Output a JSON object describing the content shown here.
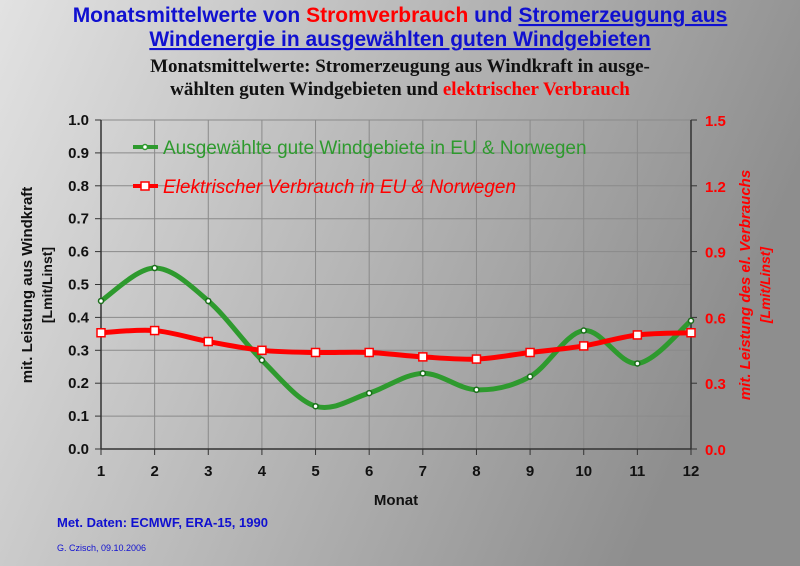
{
  "titles": {
    "overlay_line1_a": "Monatsmittelwerte von ",
    "overlay_line1_b": "Stromverbrauch",
    "overlay_line1_c": " und ",
    "overlay_line1_d": "Stromerzeugung aus",
    "overlay_line2": "Windenergie in ausgewählten guten Windgebieten",
    "main_line1": "Monatsmittelwerte: Stromerzeugung aus Windkraft in ausge-",
    "main_line2_a": "wählten guten Windgebieten und ",
    "main_line2_b": "elektrischer Verbrauch"
  },
  "footer": {
    "source": "Met. Daten: ECMWF, ERA-15, 1990",
    "author": "G. Czisch, 09.10.2006"
  },
  "colors": {
    "wind": "#2e9a2e",
    "consumption": "#ff0000",
    "title_blue": "#1010d0",
    "red": "#ff0000"
  },
  "chart_data": {
    "type": "line",
    "xlabel": "Monat",
    "ylabel": "mit. Leistung aus Windkraft",
    "ylabel_unit": "[Lmit/Linst]",
    "y2label": "mit. Leistung des el. Verbrauchs",
    "y2label_unit": "[Lmit/Linst]",
    "x": [
      1,
      2,
      3,
      4,
      5,
      6,
      7,
      8,
      9,
      10,
      11,
      12
    ],
    "ylim": [
      0,
      1.0
    ],
    "yticks": [
      "0.0",
      "0.1",
      "0.2",
      "0.3",
      "0.4",
      "0.5",
      "0.6",
      "0.7",
      "0.8",
      "0.9",
      "1.0"
    ],
    "y2lim": [
      0,
      1.5
    ],
    "y2ticks": [
      "0.0",
      "0.3",
      "0.6",
      "0.9",
      "1.2",
      "1.5"
    ],
    "grid": true,
    "legend_placement": "top",
    "series": [
      {
        "name": "Ausgewählte gute Windgebiete in EU & Norwegen",
        "axis": "left",
        "values": [
          0.45,
          0.55,
          0.45,
          0.27,
          0.13,
          0.17,
          0.23,
          0.18,
          0.22,
          0.36,
          0.26,
          0.39
        ]
      },
      {
        "name": "Elektrischer Verbrauch in EU & Norwegen",
        "axis": "right",
        "values": [
          0.53,
          0.54,
          0.49,
          0.45,
          0.44,
          0.44,
          0.42,
          0.41,
          0.44,
          0.47,
          0.52,
          0.53
        ]
      }
    ]
  }
}
